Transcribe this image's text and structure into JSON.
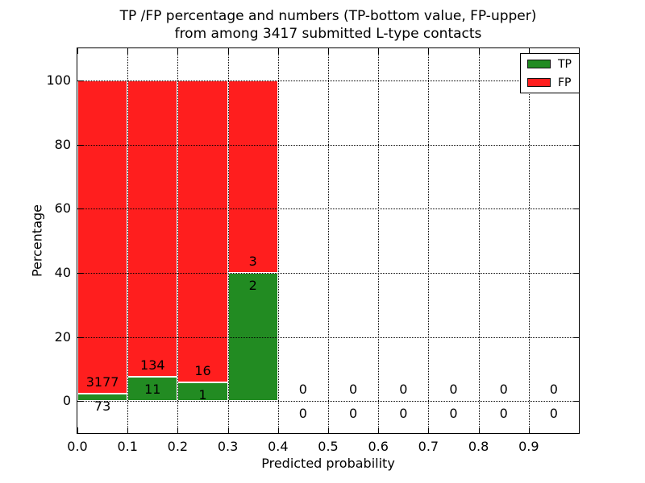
{
  "chart_data": {
    "type": "bar",
    "stacked": true,
    "title_line1": "TP /FP percentage and numbers (TP-bottom value, FP-upper)",
    "title_line2": "from among 3417 submitted L-type contacts",
    "xlabel": "Predicted probability",
    "ylabel": "Percentage",
    "xlim": [
      0.0,
      1.0
    ],
    "ylim": [
      -10,
      110
    ],
    "x_ticks": [
      {
        "v": 0.0,
        "label": "0.0"
      },
      {
        "v": 0.1,
        "label": "0.1"
      },
      {
        "v": 0.2,
        "label": "0.2"
      },
      {
        "v": 0.3,
        "label": "0.3"
      },
      {
        "v": 0.4,
        "label": "0.4"
      },
      {
        "v": 0.5,
        "label": "0.5"
      },
      {
        "v": 0.6,
        "label": "0.6"
      },
      {
        "v": 0.7,
        "label": "0.7"
      },
      {
        "v": 0.8,
        "label": "0.8"
      },
      {
        "v": 0.9,
        "label": "0.9"
      }
    ],
    "y_ticks": [
      {
        "v": 0,
        "label": "0"
      },
      {
        "v": 20,
        "label": "20"
      },
      {
        "v": 40,
        "label": "40"
      },
      {
        "v": 60,
        "label": "60"
      },
      {
        "v": 80,
        "label": "80"
      },
      {
        "v": 100,
        "label": "100"
      }
    ],
    "grid": {
      "style": "dotted",
      "color": "#000000",
      "on_top": true
    },
    "colors": {
      "tp": "#228B22",
      "fp": "#ff1e1e",
      "background": "#ffffff",
      "frame": "#000000"
    },
    "legend": {
      "position": "upper-right",
      "entries": [
        {
          "label": "TP",
          "series": "tp"
        },
        {
          "label": "FP",
          "series": "fp"
        }
      ]
    },
    "bins": [
      {
        "x_start": 0.0,
        "x_end": 0.1,
        "tp_count": 73,
        "fp_count": 3177,
        "tp_pct": 2.25,
        "total_pct": 100
      },
      {
        "x_start": 0.1,
        "x_end": 0.2,
        "tp_count": 11,
        "fp_count": 134,
        "tp_pct": 7.59,
        "total_pct": 100
      },
      {
        "x_start": 0.2,
        "x_end": 0.3,
        "tp_count": 1,
        "fp_count": 16,
        "tp_pct": 5.88,
        "total_pct": 100
      },
      {
        "x_start": 0.3,
        "x_end": 0.4,
        "tp_count": 2,
        "fp_count": 3,
        "tp_pct": 40,
        "total_pct": 100
      },
      {
        "x_start": 0.4,
        "x_end": 0.5,
        "tp_count": 0,
        "fp_count": 0,
        "tp_pct": 0,
        "total_pct": 0
      },
      {
        "x_start": 0.5,
        "x_end": 0.6,
        "tp_count": 0,
        "fp_count": 0,
        "tp_pct": 0,
        "total_pct": 0
      },
      {
        "x_start": 0.6,
        "x_end": 0.7,
        "tp_count": 0,
        "fp_count": 0,
        "tp_pct": 0,
        "total_pct": 0
      },
      {
        "x_start": 0.7,
        "x_end": 0.8,
        "tp_count": 0,
        "fp_count": 0,
        "tp_pct": 0,
        "total_pct": 0
      },
      {
        "x_start": 0.8,
        "x_end": 0.9,
        "tp_count": 0,
        "fp_count": 0,
        "tp_pct": 0,
        "total_pct": 0
      },
      {
        "x_start": 0.9,
        "x_end": 1.0,
        "tp_count": 0,
        "fp_count": 0,
        "tp_pct": 0,
        "total_pct": 0
      }
    ]
  }
}
